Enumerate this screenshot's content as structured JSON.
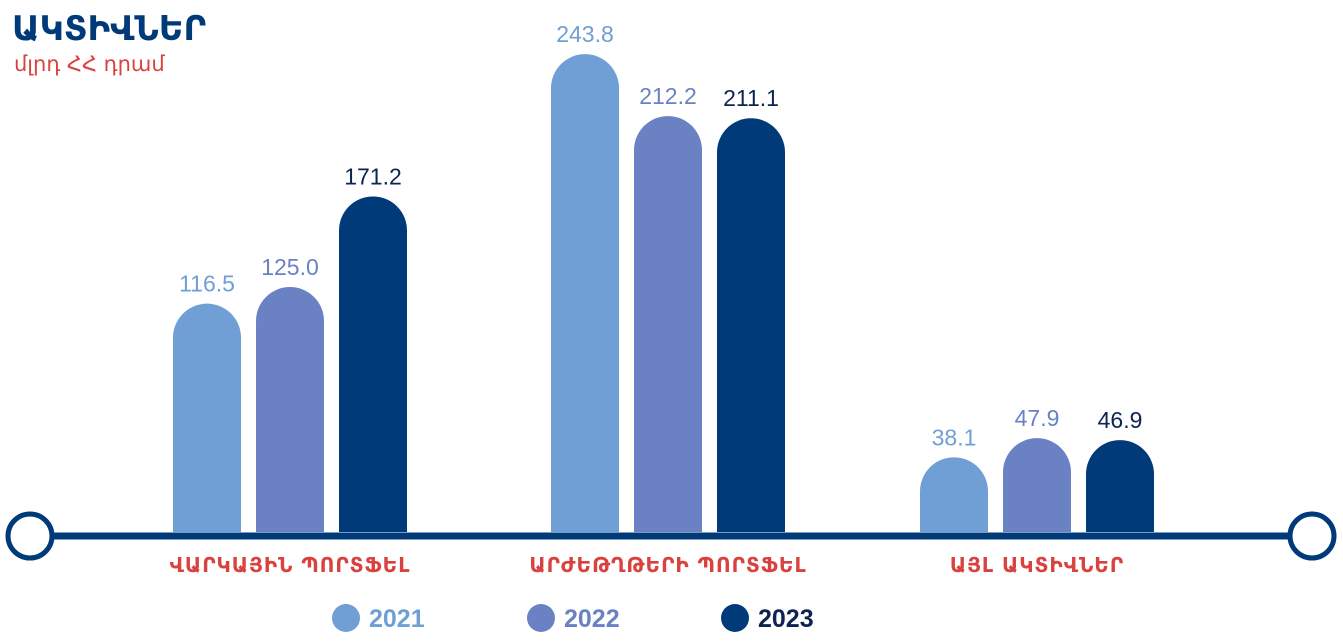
{
  "chart_data": {
    "type": "bar",
    "title": "ԱԿՏԻՎՆԵՐ",
    "subtitle": "մլրդ ՀՀ դրամ",
    "categories": [
      "ՎԱՐԿԱՅԻՆ ՊՈՐՏՖԵԼ",
      "ԱՐԺԵԹՂԹԵՐԻ ՊՈՐՏՖԵԼ",
      "ԱՅԼ ԱԿՏԻՎՆԵՐ"
    ],
    "series": [
      {
        "name": "2021",
        "values": [
          116.5,
          243.8,
          38.1
        ],
        "color": "#6f9fd4",
        "label_color": "#6f9fd4"
      },
      {
        "name": "2022",
        "values": [
          125.0,
          212.2,
          47.9
        ],
        "color": "#6a82c4",
        "label_color": "#6a82c4"
      },
      {
        "name": "2023",
        "values": [
          171.2,
          211.1,
          46.9
        ],
        "color": "#003a78",
        "label_color": "#0d2350"
      }
    ],
    "value_labels": [
      [
        "116.5",
        "243.8",
        "38.1"
      ],
      [
        "125.0",
        "212.2",
        "47.9"
      ],
      [
        "171.2",
        "211.1",
        "46.9"
      ]
    ],
    "ylim": [
      0,
      250
    ],
    "grid": false,
    "legend_position": "bottom-center",
    "colors": {
      "title": "#003a78",
      "subtitle": "#d9423f",
      "category_label": "#d9423f",
      "axis": "#003a78"
    }
  }
}
